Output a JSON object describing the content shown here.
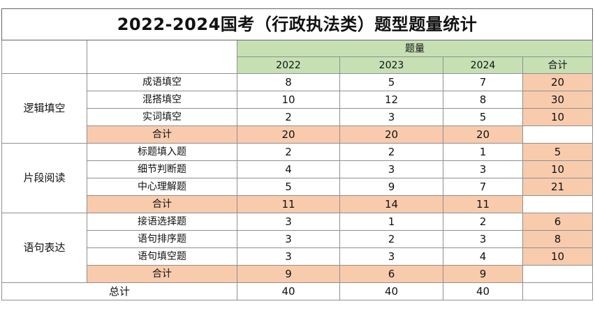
{
  "title": "2022-2024国考（行政执法类）题型题量统计",
  "header": {
    "group_label": "题量",
    "years": [
      "2022",
      "2023",
      "2024"
    ],
    "total_label": "合计"
  },
  "sections": [
    {
      "name": "逻辑填空",
      "rows": [
        {
          "label": "成语填空",
          "values": [
            "8",
            "5",
            "7"
          ],
          "total": "20"
        },
        {
          "label": "混搭填空",
          "values": [
            "10",
            "12",
            "8"
          ],
          "total": "30"
        },
        {
          "label": "实词填空",
          "values": [
            "2",
            "3",
            "5"
          ],
          "total": "10"
        }
      ],
      "subtotal": {
        "label": "合计",
        "values": [
          "20",
          "20",
          "20"
        ]
      }
    },
    {
      "name": "片段阅读",
      "rows": [
        {
          "label": "标题填入题",
          "values": [
            "2",
            "2",
            "1"
          ],
          "total": "5"
        },
        {
          "label": "细节判断题",
          "values": [
            "4",
            "3",
            "3"
          ],
          "total": "10"
        },
        {
          "label": "中心理解题",
          "values": [
            "5",
            "9",
            "7"
          ],
          "total": "21"
        }
      ],
      "subtotal": {
        "label": "合计",
        "values": [
          "11",
          "14",
          "11"
        ]
      }
    },
    {
      "name": "语句表达",
      "rows": [
        {
          "label": "接语选择题",
          "values": [
            "3",
            "1",
            "2"
          ],
          "total": "6"
        },
        {
          "label": "语句排序题",
          "values": [
            "3",
            "2",
            "3"
          ],
          "total": "8"
        },
        {
          "label": "语句填空题",
          "values": [
            "3",
            "3",
            "4"
          ],
          "total": "10"
        }
      ],
      "subtotal": {
        "label": "合计",
        "values": [
          "9",
          "6",
          "9"
        ]
      }
    }
  ],
  "grand_total": {
    "label": "总计",
    "values": [
      "40",
      "40",
      "40"
    ]
  },
  "colors": {
    "header_green": "#c6e0b4",
    "highlight_peach": "#f8cbad",
    "border": "#8f8f8f"
  }
}
